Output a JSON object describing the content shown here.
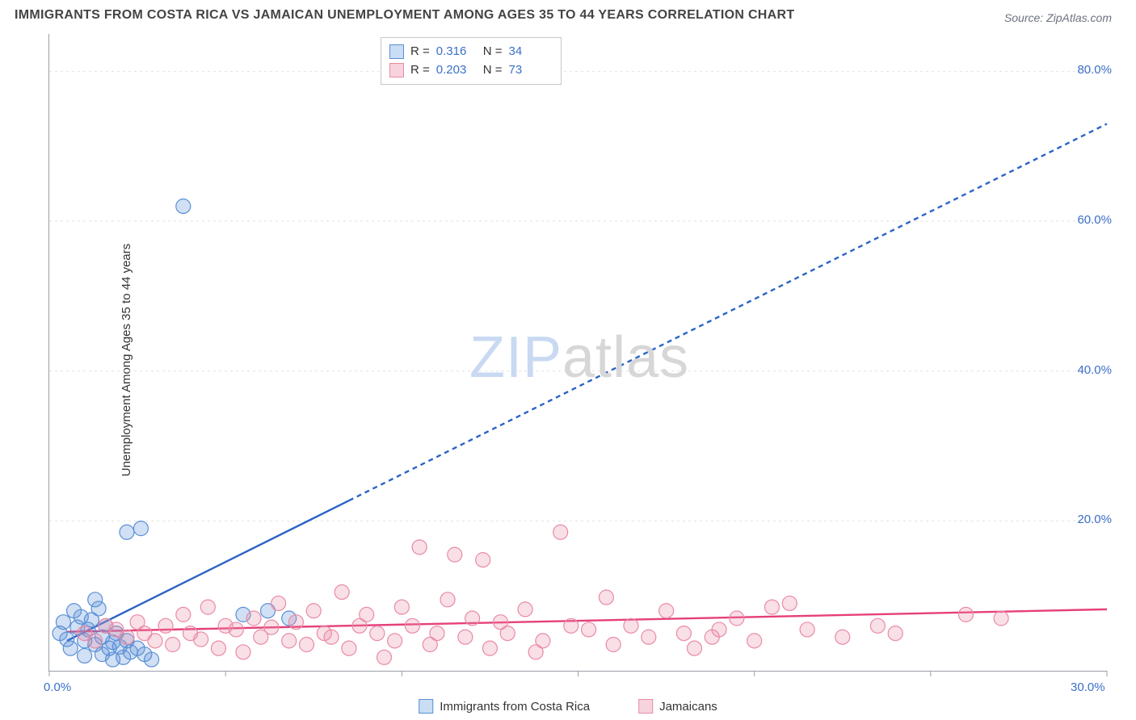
{
  "title": "IMMIGRANTS FROM COSTA RICA VS JAMAICAN UNEMPLOYMENT AMONG AGES 35 TO 44 YEARS CORRELATION CHART",
  "source": "Source: ZipAtlas.com",
  "watermark_zip": "ZIP",
  "watermark_atlas": "atlas",
  "y_axis_label": "Unemployment Among Ages 35 to 44 years",
  "chart": {
    "type": "scatter",
    "background_color": "#ffffff",
    "grid_color": "#e2e2e2",
    "axis_color": "#9aa0a6",
    "tick_label_color": "#3b6fc9",
    "xlim": [
      0,
      30
    ],
    "ylim": [
      0,
      85
    ],
    "x_ticks": [
      0,
      5,
      10,
      15,
      20,
      25,
      30
    ],
    "x_tick_labels": [
      "0.0%",
      "",
      "",
      "",
      "",
      "",
      "30.0%"
    ],
    "y_ticks": [
      20,
      40,
      60,
      80
    ],
    "y_tick_labels": [
      "20.0%",
      "40.0%",
      "60.0%",
      "80.0%"
    ],
    "marker_radius": 9,
    "marker_stroke_width": 1.2,
    "marker_fill_opacity": 0.28,
    "line_width": 2.4,
    "line_dash": "6 5",
    "series": [
      {
        "id": "costarica",
        "label": "Immigrants from Costa Rica",
        "color": "#5a8fd6",
        "line_color": "#2b63c8",
        "R": "0.316",
        "N": "34",
        "trend": {
          "x1": 0.5,
          "y1": 4,
          "x2": 30,
          "y2": 73,
          "solid_until_x": 8.5
        },
        "points": [
          [
            0.3,
            5.0
          ],
          [
            0.4,
            6.5
          ],
          [
            0.5,
            4.2
          ],
          [
            0.6,
            3.0
          ],
          [
            0.7,
            8.0
          ],
          [
            0.8,
            5.8
          ],
          [
            0.9,
            7.2
          ],
          [
            1.0,
            4.0
          ],
          [
            1.0,
            2.0
          ],
          [
            1.1,
            5.5
          ],
          [
            1.2,
            6.8
          ],
          [
            1.3,
            3.5
          ],
          [
            1.3,
            9.5
          ],
          [
            1.4,
            8.3
          ],
          [
            1.5,
            4.5
          ],
          [
            1.5,
            2.2
          ],
          [
            1.6,
            6.0
          ],
          [
            1.7,
            3.0
          ],
          [
            1.8,
            1.5
          ],
          [
            1.8,
            3.8
          ],
          [
            1.9,
            5.0
          ],
          [
            2.0,
            3.2
          ],
          [
            2.1,
            1.8
          ],
          [
            2.2,
            4.0
          ],
          [
            2.3,
            2.5
          ],
          [
            2.5,
            3.0
          ],
          [
            2.7,
            2.2
          ],
          [
            2.9,
            1.5
          ],
          [
            2.2,
            18.5
          ],
          [
            2.6,
            19.0
          ],
          [
            3.8,
            62.0
          ],
          [
            5.5,
            7.5
          ],
          [
            6.2,
            8.0
          ],
          [
            6.8,
            7.0
          ]
        ]
      },
      {
        "id": "jamaicans",
        "label": "Jamaicans",
        "color": "#e98ba6",
        "line_color": "#e63f7a",
        "R": "0.203",
        "N": "73",
        "trend": {
          "x1": 0.5,
          "y1": 5.2,
          "x2": 30,
          "y2": 8.2,
          "solid_until_x": 30
        },
        "points": [
          [
            1.0,
            5.0
          ],
          [
            1.3,
            4.0
          ],
          [
            1.6,
            6.0
          ],
          [
            1.9,
            5.5
          ],
          [
            2.2,
            4.5
          ],
          [
            2.5,
            6.5
          ],
          [
            2.7,
            5.0
          ],
          [
            3.0,
            4.0
          ],
          [
            3.3,
            6.0
          ],
          [
            3.5,
            3.5
          ],
          [
            3.8,
            7.5
          ],
          [
            4.0,
            5.0
          ],
          [
            4.3,
            4.2
          ],
          [
            4.5,
            8.5
          ],
          [
            4.8,
            3.0
          ],
          [
            5.0,
            6.0
          ],
          [
            5.3,
            5.5
          ],
          [
            5.5,
            2.5
          ],
          [
            5.8,
            7.0
          ],
          [
            6.0,
            4.5
          ],
          [
            6.3,
            5.8
          ],
          [
            6.5,
            9.0
          ],
          [
            6.8,
            4.0
          ],
          [
            7.0,
            6.5
          ],
          [
            7.3,
            3.5
          ],
          [
            7.5,
            8.0
          ],
          [
            7.8,
            5.0
          ],
          [
            8.0,
            4.5
          ],
          [
            8.3,
            10.5
          ],
          [
            8.5,
            3.0
          ],
          [
            8.8,
            6.0
          ],
          [
            9.0,
            7.5
          ],
          [
            9.3,
            5.0
          ],
          [
            9.5,
            1.8
          ],
          [
            9.8,
            4.0
          ],
          [
            10.0,
            8.5
          ],
          [
            10.3,
            6.0
          ],
          [
            10.5,
            16.5
          ],
          [
            10.8,
            3.5
          ],
          [
            11.0,
            5.0
          ],
          [
            11.5,
            15.5
          ],
          [
            11.3,
            9.5
          ],
          [
            11.8,
            4.5
          ],
          [
            12.0,
            7.0
          ],
          [
            12.3,
            14.8
          ],
          [
            12.5,
            3.0
          ],
          [
            12.8,
            6.5
          ],
          [
            13.0,
            5.0
          ],
          [
            13.5,
            8.2
          ],
          [
            13.8,
            2.5
          ],
          [
            14.0,
            4.0
          ],
          [
            14.5,
            18.5
          ],
          [
            14.8,
            6.0
          ],
          [
            15.3,
            5.5
          ],
          [
            15.8,
            9.8
          ],
          [
            16.0,
            3.5
          ],
          [
            16.5,
            6.0
          ],
          [
            17.0,
            4.5
          ],
          [
            17.5,
            8.0
          ],
          [
            18.0,
            5.0
          ],
          [
            18.3,
            3.0
          ],
          [
            18.8,
            4.5
          ],
          [
            19.0,
            5.5
          ],
          [
            19.5,
            7.0
          ],
          [
            20.0,
            4.0
          ],
          [
            20.5,
            8.5
          ],
          [
            21.0,
            9.0
          ],
          [
            21.5,
            5.5
          ],
          [
            22.5,
            4.5
          ],
          [
            23.5,
            6.0
          ],
          [
            24.0,
            5.0
          ],
          [
            26.0,
            7.5
          ],
          [
            27.0,
            7.0
          ]
        ]
      }
    ]
  },
  "legend_top": {
    "rows": [
      {
        "swatch_fill": "#c9ddf4",
        "swatch_stroke": "#5a8fd6",
        "R_label": "R =",
        "R": "0.316",
        "N_label": "N =",
        "N": "34"
      },
      {
        "swatch_fill": "#f7d3de",
        "swatch_stroke": "#e98ba6",
        "R_label": "R =",
        "R": "0.203",
        "N_label": "N =",
        "N": "73"
      }
    ]
  },
  "legend_bottom": [
    {
      "swatch_fill": "#c9ddf4",
      "swatch_stroke": "#5a8fd6",
      "label": "Immigrants from Costa Rica"
    },
    {
      "swatch_fill": "#f7d3de",
      "swatch_stroke": "#e98ba6",
      "label": "Jamaicans"
    }
  ]
}
